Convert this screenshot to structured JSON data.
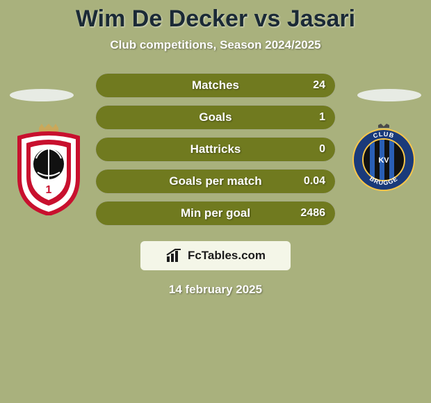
{
  "page": {
    "background_color": "#a9b17d",
    "title_color": "#1b2a36",
    "subtitle_color": "#ffffff",
    "date_color": "#ffffff",
    "ellipse_color": "#e7ebe4"
  },
  "title": "Wim De Decker vs Jasari",
  "subtitle": "Club competitions, Season 2024/2025",
  "date": "14 february 2025",
  "branding": {
    "text": "FcTables.com",
    "bg_color": "#f4f6e8",
    "text_color": "#1b1b1b",
    "icon_color": "#1b1b1b"
  },
  "crests": {
    "left": {
      "name": "royal-antwerp",
      "shield_bg": "#ffffff",
      "shield_border": "#c8102e",
      "inner_color": "#c8102e",
      "ball_color": "#111111",
      "crown_color": "#caa85a",
      "number": "1"
    },
    "right": {
      "name": "club-brugge",
      "outer_bg": "#1a3a7a",
      "ring_border": "#f7c64a",
      "inner_bg": "#111111",
      "stripe_color": "#2a5fb5",
      "text_color": "#ffffff",
      "crown_color": "#4a4a4a",
      "label": "CLUB BRUGGE"
    }
  },
  "stats": {
    "bar_fill_color": "#707a1f",
    "label_color": "#ffffff",
    "value_color": "#ffffff",
    "rows": [
      {
        "label": "Matches",
        "value": "24",
        "fill_pct": 100
      },
      {
        "label": "Goals",
        "value": "1",
        "fill_pct": 100
      },
      {
        "label": "Hattricks",
        "value": "0",
        "fill_pct": 100
      },
      {
        "label": "Goals per match",
        "value": "0.04",
        "fill_pct": 100
      },
      {
        "label": "Min per goal",
        "value": "2486",
        "fill_pct": 100
      }
    ]
  }
}
